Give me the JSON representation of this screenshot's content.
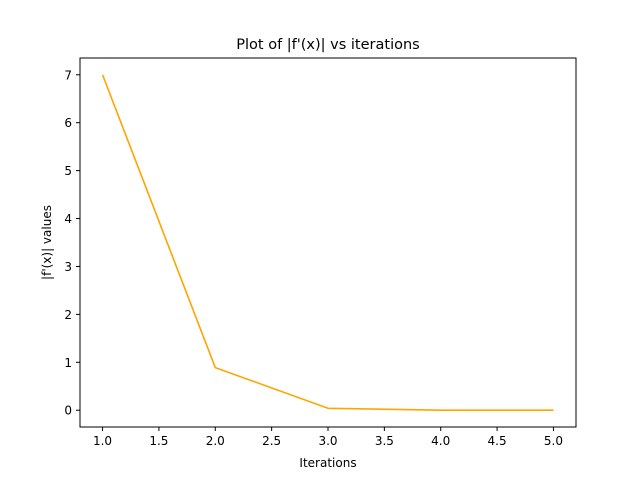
{
  "chart_data": {
    "type": "line",
    "title": "Plot of |f'(x)| vs iterations",
    "xlabel": "Iterations",
    "ylabel": "|f'(x)| values",
    "xlim": [
      0.8,
      5.2
    ],
    "ylim": [
      -0.35,
      7.35
    ],
    "xticks": [
      1.0,
      1.5,
      2.0,
      2.5,
      3.0,
      3.5,
      4.0,
      4.5,
      5.0
    ],
    "xtick_labels": [
      "1.0",
      "1.5",
      "2.0",
      "2.5",
      "3.0",
      "3.5",
      "4.0",
      "4.5",
      "5.0"
    ],
    "yticks": [
      0,
      1,
      2,
      3,
      4,
      5,
      6,
      7
    ],
    "ytick_labels": [
      "0",
      "1",
      "2",
      "3",
      "4",
      "5",
      "6",
      "7"
    ],
    "grid": false,
    "series": [
      {
        "color": "#ffa500",
        "x": [
          1,
          2,
          3,
          4,
          5
        ],
        "y": [
          7.0,
          0.89,
          0.04,
          0.001,
          0.0
        ]
      }
    ]
  }
}
